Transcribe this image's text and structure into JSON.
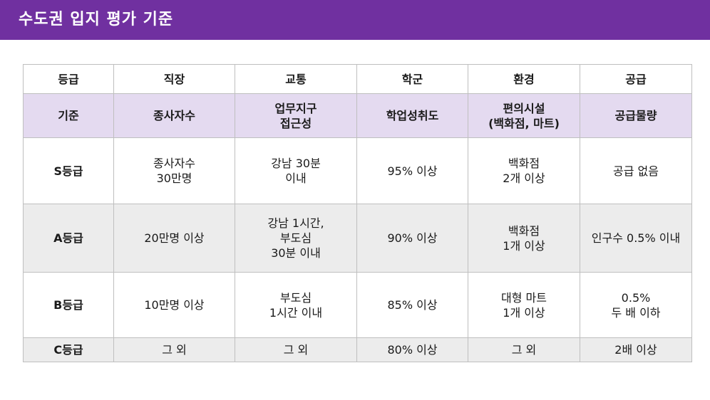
{
  "title": "수도권 입지 평가 기준",
  "table": {
    "columns": [
      "등급",
      "직장",
      "교통",
      "학군",
      "환경",
      "공급"
    ],
    "criteria_row": [
      "기준",
      "종사자수",
      "업무지구\n접근성",
      "학업성취도",
      "편의시설\n(백화점, 마트)",
      "공급물량"
    ],
    "rows": [
      {
        "grade": "S등급",
        "cells": [
          "종사자수\n30만명",
          "강남 30분\n이내",
          "95% 이상",
          "백화점\n2개 이상",
          "공급 없음"
        ]
      },
      {
        "grade": "A등급",
        "cells": [
          "20만명 이상",
          "강남 1시간,\n부도심\n30분 이내",
          "90% 이상",
          "백화점\n1개 이상",
          "인구수 0.5% 이내"
        ]
      },
      {
        "grade": "B등급",
        "cells": [
          "10만명 이상",
          "부도심\n1시간 이내",
          "85% 이상",
          "대형 마트\n1개 이상",
          "0.5%\n두 배 이하"
        ]
      },
      {
        "grade": "C등급",
        "cells": [
          "그 외",
          "그 외",
          "80% 이상",
          "그 외",
          "2배 이상"
        ]
      }
    ]
  },
  "colors": {
    "title_bar": "#7030a0",
    "criteria_row": "#e4daf0",
    "alt_row": "#ececec",
    "border": "#bfbfbf"
  }
}
